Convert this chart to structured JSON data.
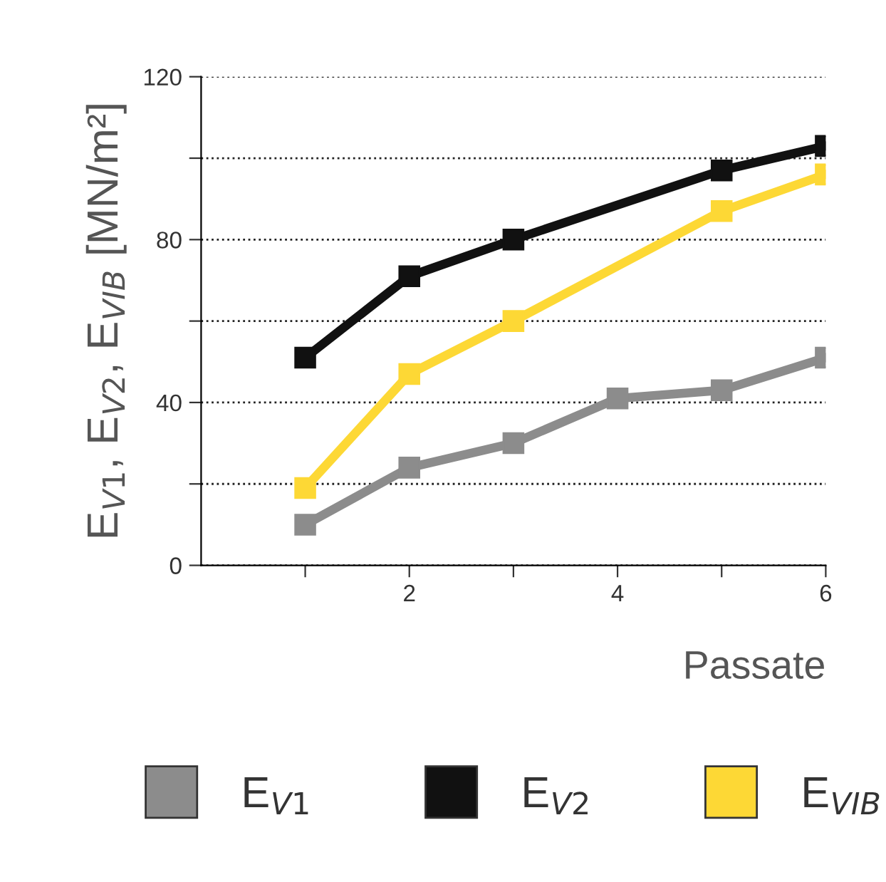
{
  "chart_data": {
    "type": "line",
    "xlabel": "Passate",
    "ylabel": "E$_{V1}$, E$_{V2}$, E$_{VIB}$ [MN/m²]",
    "xlim": [
      0,
      6
    ],
    "xticks": [
      {
        "value": 1,
        "label": null
      },
      2,
      {
        "value": 3,
        "label": null
      },
      4,
      {
        "value": 5,
        "label": null
      },
      6
    ],
    "ylim": [
      0,
      120
    ],
    "yticks": [
      0,
      {
        "value": 20,
        "label": null
      },
      40,
      {
        "value": 60,
        "label": null
      },
      80,
      {
        "value": 100,
        "label": null
      },
      120
    ],
    "grid": "y",
    "legend": "bottom",
    "marker": "square",
    "line_style": "solid",
    "series": [
      {
        "name": "E$_{V1}$",
        "color": "#8c8c8c",
        "x": [
          1,
          2,
          3,
          4,
          5,
          6
        ],
        "values": [
          10,
          24,
          30,
          41,
          43,
          51
        ]
      },
      {
        "name": "E$_{V2}$",
        "color": "#111111",
        "x": [
          1,
          2,
          3,
          5,
          6
        ],
        "values": [
          51,
          71,
          80,
          97,
          103
        ]
      },
      {
        "name": "E$_{VIB}$",
        "color": "#fdd835",
        "x": [
          1,
          2,
          3,
          5,
          6
        ],
        "values": [
          19,
          47,
          60,
          87,
          96
        ]
      }
    ]
  }
}
